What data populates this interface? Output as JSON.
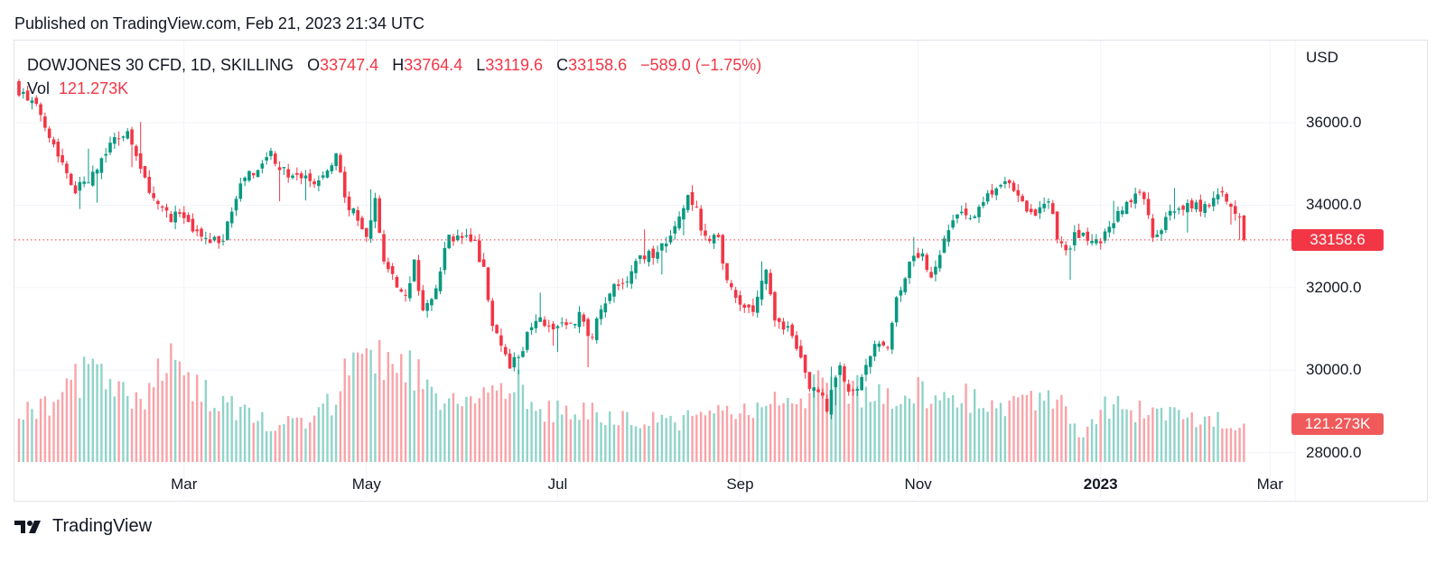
{
  "published": "Published on TradingView.com, Feb 21, 2023 21:34 UTC",
  "legend": {
    "symbol": "DOWJONES 30 CFD, 1D, SKILLING",
    "o_label": "O",
    "open": "33747.4",
    "h_label": "H",
    "high": "33764.4",
    "l_label": "L",
    "low": "33119.6",
    "c_label": "C",
    "close": "33158.6",
    "change": "−589.0 (−1.75%)",
    "vol_label": "Vol",
    "vol_value": "121.273K"
  },
  "footer": {
    "logo_text": "TradingView"
  },
  "colors": {
    "up": "#089981",
    "down": "#f23645",
    "vol_up": "#8fd4c9",
    "vol_down": "#f9a3a8",
    "vol_label_bg": "#f05a5a"
  },
  "chart_data": {
    "type": "candlestick",
    "currency": "USD",
    "y_ticks": [
      "36000.0",
      "34000.0",
      "32000.0",
      "30000.0",
      "28000.0"
    ],
    "ylim": [
      27400,
      37300
    ],
    "x_ticks": [
      {
        "label": "Mar",
        "day": 38,
        "bold": false
      },
      {
        "label": "May",
        "day": 80,
        "bold": false
      },
      {
        "label": "Jul",
        "day": 124,
        "bold": false
      },
      {
        "label": "Sep",
        "day": 166,
        "bold": false
      },
      {
        "label": "Nov",
        "day": 207,
        "bold": false
      },
      {
        "label": "2023",
        "day": 249,
        "bold": true
      },
      {
        "label": "Mar",
        "day": 288,
        "bold": false
      }
    ],
    "bars": 283,
    "last_price": "33158.6",
    "last_volume": "121.273K",
    "last_bar": {
      "open": 33747.4,
      "high": 33764.4,
      "low": 33119.6,
      "close": 33158.6,
      "volume_k": 121.273
    },
    "close_waypoints": [
      [
        0,
        36790
      ],
      [
        5,
        36240
      ],
      [
        9,
        35250
      ],
      [
        13,
        34380
      ],
      [
        17,
        34700
      ],
      [
        21,
        35580
      ],
      [
        25,
        35800
      ],
      [
        28,
        34800
      ],
      [
        32,
        34050
      ],
      [
        35,
        33720
      ],
      [
        37,
        33830
      ],
      [
        40,
        33300
      ],
      [
        43,
        33180
      ],
      [
        47,
        33180
      ],
      [
        50,
        34270
      ],
      [
        53,
        34710
      ],
      [
        56,
        34930
      ],
      [
        58,
        35260
      ],
      [
        61,
        34820
      ],
      [
        65,
        34710
      ],
      [
        68,
        34490
      ],
      [
        72,
        34930
      ],
      [
        73,
        35260
      ],
      [
        75,
        34160
      ],
      [
        78,
        33610
      ],
      [
        80,
        33180
      ],
      [
        82,
        34050
      ],
      [
        84,
        32740
      ],
      [
        87,
        31970
      ],
      [
        89,
        31750
      ],
      [
        91,
        32630
      ],
      [
        93,
        31320
      ],
      [
        96,
        32080
      ],
      [
        99,
        33240
      ],
      [
        102,
        33180
      ],
      [
        105,
        33070
      ],
      [
        107,
        32410
      ],
      [
        109,
        31200
      ],
      [
        111,
        30550
      ],
      [
        113,
        30110
      ],
      [
        116,
        30550
      ],
      [
        119,
        31320
      ],
      [
        122,
        30990
      ],
      [
        126,
        31100
      ],
      [
        129,
        31320
      ],
      [
        132,
        30770
      ],
      [
        134,
        31540
      ],
      [
        137,
        31970
      ],
      [
        140,
        32190
      ],
      [
        143,
        32740
      ],
      [
        146,
        32790
      ],
      [
        149,
        33070
      ],
      [
        152,
        33610
      ],
      [
        154,
        34160
      ],
      [
        156,
        33830
      ],
      [
        158,
        33180
      ],
      [
        161,
        33180
      ],
      [
        163,
        32190
      ],
      [
        166,
        31650
      ],
      [
        169,
        31430
      ],
      [
        172,
        32410
      ],
      [
        174,
        31200
      ],
      [
        177,
        30990
      ],
      [
        180,
        30220
      ],
      [
        182,
        29560
      ],
      [
        185,
        29460
      ],
      [
        186,
        29020
      ],
      [
        189,
        30220
      ],
      [
        191,
        29350
      ],
      [
        193,
        29460
      ],
      [
        195,
        30000
      ],
      [
        198,
        30770
      ],
      [
        200,
        30660
      ],
      [
        202,
        31750
      ],
      [
        206,
        32850
      ],
      [
        208,
        32740
      ],
      [
        210,
        32300
      ],
      [
        213,
        33180
      ],
      [
        215,
        33720
      ],
      [
        217,
        33720
      ],
      [
        220,
        33720
      ],
      [
        223,
        34200
      ],
      [
        226,
        34380
      ],
      [
        228,
        34600
      ],
      [
        231,
        34050
      ],
      [
        234,
        33720
      ],
      [
        237,
        34050
      ],
      [
        239,
        33290
      ],
      [
        241,
        32850
      ],
      [
        243,
        33290
      ],
      [
        246,
        33180
      ],
      [
        249,
        33120
      ],
      [
        252,
        33610
      ],
      [
        257,
        34270
      ],
      [
        259,
        34160
      ],
      [
        261,
        33180
      ],
      [
        263,
        33500
      ],
      [
        266,
        33940
      ],
      [
        269,
        34050
      ],
      [
        272,
        33940
      ],
      [
        275,
        34050
      ],
      [
        277,
        34270
      ],
      [
        279,
        34050
      ],
      [
        281,
        33720
      ],
      [
        282,
        33158.6
      ]
    ],
    "volume_waypoints_k": [
      [
        0,
        150
      ],
      [
        8,
        180
      ],
      [
        13,
        260
      ],
      [
        17,
        300
      ],
      [
        21,
        220
      ],
      [
        28,
        190
      ],
      [
        35,
        330
      ],
      [
        40,
        240
      ],
      [
        47,
        190
      ],
      [
        53,
        140
      ],
      [
        58,
        120
      ],
      [
        65,
        130
      ],
      [
        72,
        190
      ],
      [
        75,
        300
      ],
      [
        80,
        330
      ],
      [
        84,
        330
      ],
      [
        89,
        320
      ],
      [
        93,
        250
      ],
      [
        99,
        200
      ],
      [
        105,
        180
      ],
      [
        109,
        250
      ],
      [
        113,
        270
      ],
      [
        119,
        170
      ],
      [
        126,
        160
      ],
      [
        134,
        150
      ],
      [
        143,
        140
      ],
      [
        152,
        130
      ],
      [
        158,
        160
      ],
      [
        166,
        160
      ],
      [
        172,
        170
      ],
      [
        178,
        210
      ],
      [
        186,
        240
      ],
      [
        193,
        230
      ],
      [
        200,
        220
      ],
      [
        206,
        220
      ],
      [
        213,
        210
      ],
      [
        220,
        200
      ],
      [
        228,
        170
      ],
      [
        234,
        190
      ],
      [
        237,
        230
      ],
      [
        241,
        150
      ],
      [
        244,
        80
      ],
      [
        249,
        170
      ],
      [
        255,
        170
      ],
      [
        261,
        150
      ],
      [
        269,
        140
      ],
      [
        275,
        140
      ],
      [
        282,
        121.273
      ]
    ]
  }
}
